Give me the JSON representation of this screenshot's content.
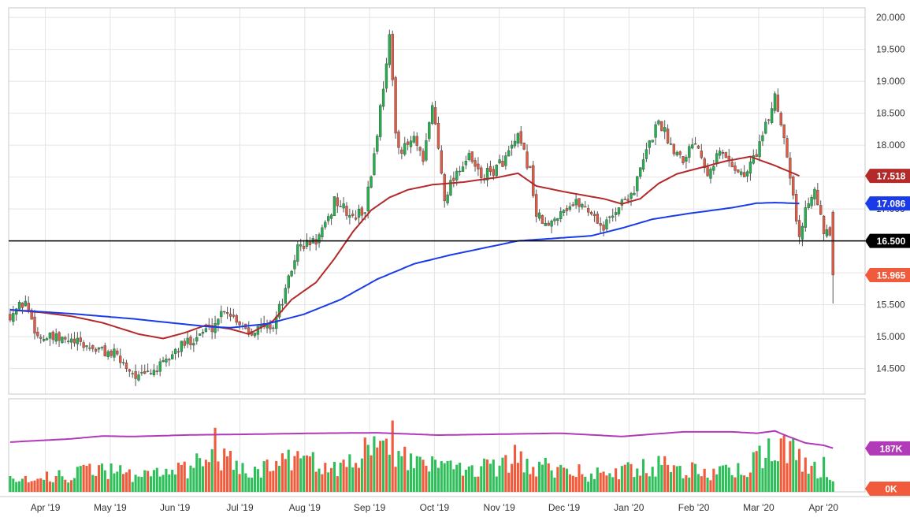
{
  "chart_data": [
    {
      "type": "candlestick",
      "title": "",
      "xlabel": "",
      "ylabel": "",
      "ylim": [
        14.1,
        20.15
      ],
      "y_ticks": [
        "14.500",
        "15.000",
        "15.500",
        "16.000",
        "16.500",
        "17.000",
        "17.500",
        "18.000",
        "18.500",
        "19.000",
        "19.500",
        "20.000"
      ],
      "x_ticks": [
        "Apr '19",
        "May '19",
        "Jun '19",
        "Jul '19",
        "Aug '19",
        "Sep '19",
        "Oct '19",
        "Nov '19",
        "Dec '19",
        "Jan '20",
        "Feb '20",
        "Mar '20",
        "Apr '20"
      ],
      "grid": true,
      "series": [
        {
          "name": "",
          "kind": "ohlc",
          "color_up": "#22b14c",
          "color_down": "#e05a44"
        },
        {
          "name": "",
          "kind": "line",
          "color": "#b22a2a",
          "last": 17.518,
          "anchors": [
            [
              0,
              15.42
            ],
            [
              10,
              15.38
            ],
            [
              20,
              15.32
            ],
            [
              30,
              15.22
            ],
            [
              42,
              15.04
            ],
            [
              50,
              14.97
            ],
            [
              57,
              15.06
            ],
            [
              64,
              15.18
            ],
            [
              72,
              15.12
            ],
            [
              78,
              15.04
            ],
            [
              86,
              15.25
            ],
            [
              92,
              15.58
            ],
            [
              100,
              15.85
            ],
            [
              106,
              16.22
            ],
            [
              112,
              16.64
            ],
            [
              118,
              16.98
            ],
            [
              124,
              17.18
            ],
            [
              130,
              17.3
            ],
            [
              138,
              17.38
            ],
            [
              148,
              17.42
            ],
            [
              160,
              17.5
            ],
            [
              166,
              17.56
            ],
            [
              172,
              17.36
            ],
            [
              180,
              17.28
            ],
            [
              188,
              17.21
            ],
            [
              194,
              17.16
            ],
            [
              200,
              17.08
            ],
            [
              206,
              17.16
            ],
            [
              212,
              17.4
            ],
            [
              218,
              17.55
            ],
            [
              226,
              17.65
            ],
            [
              234,
              17.75
            ],
            [
              242,
              17.82
            ],
            [
              250,
              17.68
            ],
            [
              254,
              17.6
            ],
            [
              258,
              17.518
            ]
          ]
        },
        {
          "name": "",
          "kind": "line",
          "color": "#1a3ce8",
          "last": 17.086,
          "anchors": [
            [
              0,
              15.42
            ],
            [
              20,
              15.36
            ],
            [
              40,
              15.28
            ],
            [
              56,
              15.2
            ],
            [
              64,
              15.16
            ],
            [
              72,
              15.14
            ],
            [
              84,
              15.2
            ],
            [
              96,
              15.35
            ],
            [
              108,
              15.58
            ],
            [
              120,
              15.9
            ],
            [
              132,
              16.14
            ],
            [
              144,
              16.28
            ],
            [
              156,
              16.4
            ],
            [
              166,
              16.5
            ],
            [
              178,
              16.54
            ],
            [
              190,
              16.58
            ],
            [
              200,
              16.7
            ],
            [
              210,
              16.84
            ],
            [
              222,
              16.93
            ],
            [
              236,
              17.02
            ],
            [
              244,
              17.09
            ],
            [
              250,
              17.1
            ],
            [
              258,
              17.086
            ]
          ]
        },
        {
          "name": "",
          "kind": "hline",
          "color": "#000000",
          "value": 16.5
        }
      ],
      "price_labels": [
        {
          "value": 17.518,
          "text": "17.518",
          "color": "#b22a2a"
        },
        {
          "value": 17.086,
          "text": "17.086",
          "color": "#1a3ce8"
        },
        {
          "value": 16.5,
          "text": "16.500",
          "color": "#000000"
        },
        {
          "value": 15.965,
          "text": "15.965",
          "color": "#f15a3a"
        }
      ],
      "ohlc_keypoints": [
        [
          0,
          15.35
        ],
        [
          5,
          15.55
        ],
        [
          9,
          15.0
        ],
        [
          20,
          14.92
        ],
        [
          34,
          14.72
        ],
        [
          42,
          14.35
        ],
        [
          50,
          14.55
        ],
        [
          54,
          14.78
        ],
        [
          62,
          15.05
        ],
        [
          66,
          15.15
        ],
        [
          70,
          15.45
        ],
        [
          78,
          15.1
        ],
        [
          86,
          15.18
        ],
        [
          90,
          15.7
        ],
        [
          94,
          16.4
        ],
        [
          100,
          16.5
        ],
        [
          104,
          16.8
        ],
        [
          106,
          17.15
        ],
        [
          112,
          16.85
        ],
        [
          116,
          17.0
        ],
        [
          118,
          17.55
        ],
        [
          120,
          18.2
        ],
        [
          124,
          19.7
        ],
        [
          126,
          18.2
        ],
        [
          128,
          17.9
        ],
        [
          132,
          18.1
        ],
        [
          135,
          17.7
        ],
        [
          138,
          18.65
        ],
        [
          140,
          17.95
        ],
        [
          142,
          17.2
        ],
        [
          146,
          17.6
        ],
        [
          150,
          17.8
        ],
        [
          154,
          17.5
        ],
        [
          158,
          17.6
        ],
        [
          162,
          17.8
        ],
        [
          166,
          18.1
        ],
        [
          170,
          17.6
        ],
        [
          172,
          16.9
        ],
        [
          176,
          16.7
        ],
        [
          180,
          17.0
        ],
        [
          186,
          17.1
        ],
        [
          190,
          16.95
        ],
        [
          194,
          16.7
        ],
        [
          198,
          17.0
        ],
        [
          204,
          17.3
        ],
        [
          208,
          17.9
        ],
        [
          212,
          18.4
        ],
        [
          216,
          18.0
        ],
        [
          220,
          17.8
        ],
        [
          224,
          18.1
        ],
        [
          228,
          17.6
        ],
        [
          232,
          17.9
        ],
        [
          236,
          17.7
        ],
        [
          240,
          17.5
        ],
        [
          244,
          17.9
        ],
        [
          248,
          18.4
        ],
        [
          250,
          18.8
        ],
        [
          254,
          17.9
        ],
        [
          256,
          17.2
        ],
        [
          258,
          16.5
        ],
        [
          260,
          17.0
        ],
        [
          263,
          17.4
        ],
        [
          266,
          16.6
        ],
        [
          268,
          16.6
        ],
        [
          269,
          15.965
        ]
      ],
      "volume": {
        "ylim": [
          0,
          400000
        ],
        "avg_label": "187K",
        "zero_label": "0K",
        "avg_color": "#b03ab8",
        "avg_value": 187000,
        "heights": [
          [
            0,
            60000
          ],
          [
            20,
            70000
          ],
          [
            30,
            95000
          ],
          [
            40,
            75000
          ],
          [
            50,
            90000
          ],
          [
            60,
            100000
          ],
          [
            66,
            215000
          ],
          [
            70,
            150000
          ],
          [
            80,
            90000
          ],
          [
            90,
            140000
          ],
          [
            100,
            120000
          ],
          [
            110,
            120000
          ],
          [
            118,
            180000
          ],
          [
            124,
            230000
          ],
          [
            130,
            120000
          ],
          [
            138,
            120000
          ],
          [
            150,
            110000
          ],
          [
            160,
            100000
          ],
          [
            166,
            160000
          ],
          [
            170,
            110000
          ],
          [
            180,
            100000
          ],
          [
            190,
            70000
          ],
          [
            200,
            85000
          ],
          [
            210,
            120000
          ],
          [
            220,
            95000
          ],
          [
            230,
            80000
          ],
          [
            240,
            90000
          ],
          [
            246,
            150000
          ],
          [
            250,
            220000
          ],
          [
            254,
            190000
          ],
          [
            258,
            130000
          ],
          [
            262,
            90000
          ],
          [
            266,
            110000
          ],
          [
            269,
            80000
          ]
        ],
        "avg_anchors": [
          [
            0,
            214000
          ],
          [
            20,
            228000
          ],
          [
            30,
            240000
          ],
          [
            40,
            238000
          ],
          [
            60,
            245000
          ],
          [
            80,
            248000
          ],
          [
            100,
            252000
          ],
          [
            120,
            254000
          ],
          [
            140,
            244000
          ],
          [
            160,
            248000
          ],
          [
            180,
            252000
          ],
          [
            200,
            238000
          ],
          [
            220,
            258000
          ],
          [
            236,
            258000
          ],
          [
            244,
            252000
          ],
          [
            250,
            262000
          ],
          [
            254,
            240000
          ],
          [
            260,
            210000
          ],
          [
            266,
            200000
          ],
          [
            269,
            188000
          ]
        ]
      }
    }
  ]
}
